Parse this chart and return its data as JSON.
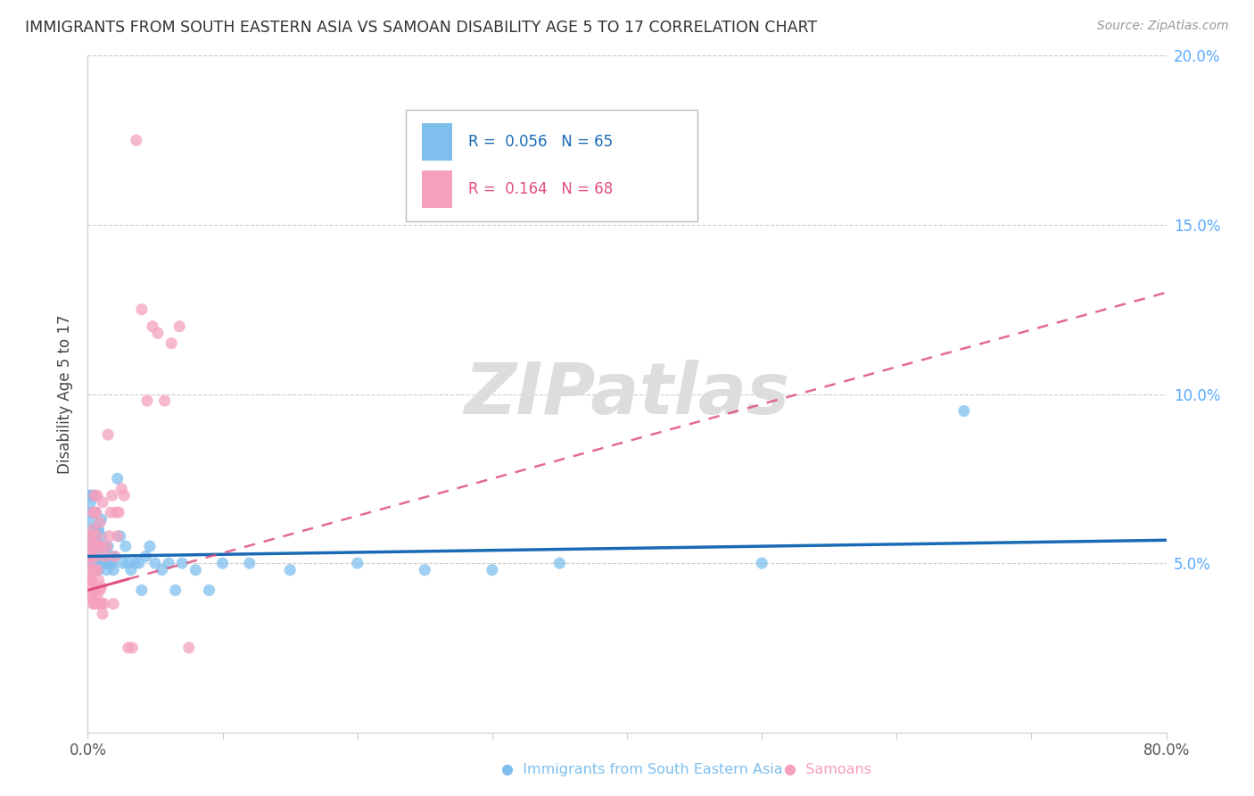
{
  "title": "IMMIGRANTS FROM SOUTH EASTERN ASIA VS SAMOAN DISABILITY AGE 5 TO 17 CORRELATION CHART",
  "source": "Source: ZipAtlas.com",
  "ylabel": "Disability Age 5 to 17",
  "watermark": "ZIPatlas",
  "legend_label1": "Immigrants from South Eastern Asia",
  "legend_label2": "Samoans",
  "blue_color": "#7fbfee",
  "pink_color": "#f4a0be",
  "blue_line_color": "#1a6ab5",
  "pink_line_color": "#e05080",
  "right_axis_color": "#5aaaff",
  "xlim": [
    0.0,
    0.8
  ],
  "ylim": [
    0.0,
    0.2
  ],
  "blue_intercept": 0.052,
  "blue_slope": 0.006,
  "pink_intercept": 0.042,
  "pink_slope": 0.11,
  "blue_x": [
    0.001,
    0.001,
    0.002,
    0.002,
    0.003,
    0.003,
    0.003,
    0.004,
    0.004,
    0.004,
    0.005,
    0.005,
    0.005,
    0.005,
    0.006,
    0.006,
    0.006,
    0.007,
    0.007,
    0.007,
    0.008,
    0.008,
    0.008,
    0.009,
    0.009,
    0.01,
    0.01,
    0.01,
    0.011,
    0.012,
    0.013,
    0.014,
    0.015,
    0.016,
    0.017,
    0.018,
    0.019,
    0.02,
    0.022,
    0.024,
    0.026,
    0.028,
    0.03,
    0.032,
    0.035,
    0.038,
    0.04,
    0.043,
    0.046,
    0.05,
    0.055,
    0.06,
    0.065,
    0.07,
    0.08,
    0.09,
    0.1,
    0.12,
    0.15,
    0.2,
    0.25,
    0.3,
    0.35,
    0.5,
    0.65
  ],
  "blue_y": [
    0.065,
    0.07,
    0.058,
    0.068,
    0.055,
    0.062,
    0.07,
    0.05,
    0.058,
    0.065,
    0.048,
    0.055,
    0.06,
    0.07,
    0.053,
    0.058,
    0.065,
    0.05,
    0.055,
    0.06,
    0.048,
    0.055,
    0.06,
    0.05,
    0.055,
    0.052,
    0.058,
    0.063,
    0.05,
    0.055,
    0.05,
    0.048,
    0.055,
    0.05,
    0.052,
    0.05,
    0.048,
    0.052,
    0.075,
    0.058,
    0.05,
    0.055,
    0.05,
    0.048,
    0.05,
    0.05,
    0.042,
    0.052,
    0.055,
    0.05,
    0.048,
    0.05,
    0.042,
    0.05,
    0.048,
    0.042,
    0.05,
    0.05,
    0.048,
    0.05,
    0.048,
    0.048,
    0.05,
    0.05,
    0.095
  ],
  "pink_x": [
    0.001,
    0.001,
    0.001,
    0.002,
    0.002,
    0.002,
    0.002,
    0.003,
    0.003,
    0.003,
    0.003,
    0.003,
    0.004,
    0.004,
    0.004,
    0.004,
    0.004,
    0.004,
    0.005,
    0.005,
    0.005,
    0.005,
    0.005,
    0.005,
    0.006,
    0.006,
    0.006,
    0.006,
    0.007,
    0.007,
    0.007,
    0.007,
    0.008,
    0.008,
    0.008,
    0.009,
    0.009,
    0.009,
    0.01,
    0.01,
    0.01,
    0.011,
    0.011,
    0.012,
    0.013,
    0.014,
    0.015,
    0.016,
    0.017,
    0.018,
    0.019,
    0.02,
    0.021,
    0.022,
    0.023,
    0.025,
    0.027,
    0.03,
    0.033,
    0.036,
    0.04,
    0.044,
    0.048,
    0.052,
    0.057,
    0.062,
    0.068,
    0.075
  ],
  "pink_y": [
    0.045,
    0.05,
    0.055,
    0.04,
    0.045,
    0.052,
    0.058,
    0.04,
    0.045,
    0.048,
    0.052,
    0.058,
    0.038,
    0.043,
    0.048,
    0.055,
    0.06,
    0.065,
    0.038,
    0.042,
    0.048,
    0.055,
    0.065,
    0.07,
    0.038,
    0.042,
    0.052,
    0.065,
    0.04,
    0.048,
    0.058,
    0.07,
    0.038,
    0.045,
    0.055,
    0.038,
    0.042,
    0.062,
    0.038,
    0.043,
    0.055,
    0.035,
    0.068,
    0.038,
    0.052,
    0.055,
    0.088,
    0.058,
    0.065,
    0.07,
    0.038,
    0.052,
    0.065,
    0.058,
    0.065,
    0.072,
    0.07,
    0.025,
    0.025,
    0.175,
    0.125,
    0.098,
    0.12,
    0.118,
    0.098,
    0.115,
    0.12,
    0.025
  ]
}
